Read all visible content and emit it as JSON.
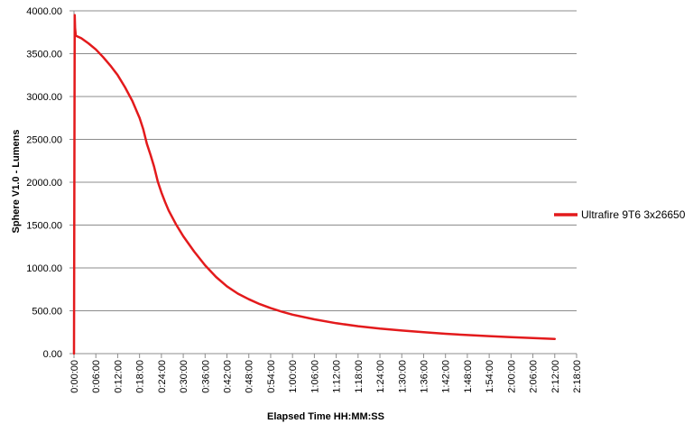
{
  "chart_data": {
    "type": "line",
    "title": "",
    "xlabel": "Elapsed Time HH:MM:SS",
    "ylabel": "Sphere V1.0 - Lumens",
    "ylim": [
      0,
      4000
    ],
    "xlim_minutes": [
      0,
      138
    ],
    "yticks": [
      "0.00",
      "500.00",
      "1000.00",
      "1500.00",
      "2000.00",
      "2500.00",
      "3000.00",
      "3500.00",
      "4000.00"
    ],
    "xticks": [
      "0:00:00",
      "0:06:00",
      "0:12:00",
      "0:18:00",
      "0:24:00",
      "0:30:00",
      "0:36:00",
      "0:42:00",
      "0:48:00",
      "0:54:00",
      "1:00:00",
      "1:06:00",
      "1:12:00",
      "1:18:00",
      "1:24:00",
      "1:30:00",
      "1:36:00",
      "1:42:00",
      "1:48:00",
      "1:54:00",
      "2:00:00",
      "2:06:00",
      "2:12:00",
      "2:18:00"
    ],
    "grid": "horizontal",
    "legend_position": "right",
    "series": [
      {
        "name": "Ultrafire 9T6 3x26650",
        "color": "#e31a1c",
        "x_minutes": [
          0,
          0.2,
          0.3,
          0.5,
          1,
          2,
          3,
          4,
          6,
          8,
          10,
          12,
          14,
          16,
          18,
          19,
          20,
          21,
          22,
          23,
          24,
          25,
          26,
          28,
          30,
          33,
          36,
          39,
          42,
          45,
          48,
          51,
          54,
          57,
          60,
          66,
          72,
          78,
          84,
          90,
          96,
          102,
          108,
          114,
          120,
          126,
          132
        ],
        "values": [
          0,
          3950,
          3800,
          3710,
          3700,
          3680,
          3650,
          3620,
          3550,
          3460,
          3360,
          3250,
          3110,
          2950,
          2750,
          2620,
          2450,
          2320,
          2180,
          2010,
          1880,
          1770,
          1670,
          1510,
          1370,
          1190,
          1030,
          895,
          785,
          700,
          635,
          578,
          530,
          490,
          455,
          400,
          355,
          320,
          292,
          270,
          250,
          232,
          217,
          204,
          192,
          182,
          172
        ]
      }
    ]
  }
}
